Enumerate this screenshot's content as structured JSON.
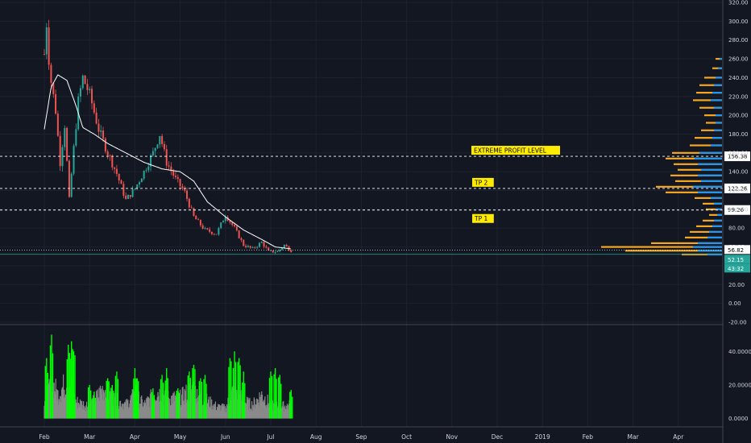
{
  "chart_data": [
    {
      "type": "candlestick",
      "ylim": [
        -20,
        320
      ],
      "y_ticks": [
        "320.00",
        "300.00",
        "280.00",
        "260.00",
        "240.00",
        "220.00",
        "200.00",
        "180.00",
        "160.00",
        "140.00",
        "120.00",
        "100.00",
        "80.00",
        "60.00",
        "40.00",
        "20.00",
        "0.00",
        "-20.00"
      ],
      "x_ticks": [
        "Feb",
        "Mar",
        "Apr",
        "May",
        "Jun",
        "Jul",
        "Aug",
        "Sep",
        "Oct",
        "Nov",
        "Dec",
        "2019",
        "Feb",
        "Mar",
        "Apr"
      ],
      "price_keypoints": [
        {
          "m": 0.0,
          "v": 265
        },
        {
          "m": 0.05,
          "v": 298
        },
        {
          "m": 0.12,
          "v": 245
        },
        {
          "m": 0.25,
          "v": 205
        },
        {
          "m": 0.35,
          "v": 150
        },
        {
          "m": 0.45,
          "v": 190
        },
        {
          "m": 0.55,
          "v": 110
        },
        {
          "m": 0.65,
          "v": 165
        },
        {
          "m": 0.75,
          "v": 215
        },
        {
          "m": 0.85,
          "v": 240
        },
        {
          "m": 1.0,
          "v": 222
        },
        {
          "m": 1.2,
          "v": 185
        },
        {
          "m": 1.4,
          "v": 160
        },
        {
          "m": 1.6,
          "v": 138
        },
        {
          "m": 1.8,
          "v": 110
        },
        {
          "m": 2.0,
          "v": 122
        },
        {
          "m": 2.2,
          "v": 140
        },
        {
          "m": 2.4,
          "v": 160
        },
        {
          "m": 2.55,
          "v": 180
        },
        {
          "m": 2.7,
          "v": 150
        },
        {
          "m": 2.9,
          "v": 132
        },
        {
          "m": 3.1,
          "v": 118
        },
        {
          "m": 3.3,
          "v": 92
        },
        {
          "m": 3.55,
          "v": 78
        },
        {
          "m": 3.8,
          "v": 74
        },
        {
          "m": 4.0,
          "v": 94
        },
        {
          "m": 4.2,
          "v": 80
        },
        {
          "m": 4.4,
          "v": 62
        },
        {
          "m": 4.6,
          "v": 58
        },
        {
          "m": 4.8,
          "v": 65
        },
        {
          "m": 4.95,
          "v": 55
        },
        {
          "m": 5.15,
          "v": 55
        },
        {
          "m": 5.3,
          "v": 62
        },
        {
          "m": 5.45,
          "v": 56
        }
      ],
      "moving_average_keypoints": [
        {
          "m": 0.0,
          "v": 185
        },
        {
          "m": 0.15,
          "v": 230
        },
        {
          "m": 0.3,
          "v": 243
        },
        {
          "m": 0.5,
          "v": 237
        },
        {
          "m": 0.7,
          "v": 210
        },
        {
          "m": 0.85,
          "v": 187
        },
        {
          "m": 1.1,
          "v": 180
        },
        {
          "m": 1.4,
          "v": 170
        },
        {
          "m": 1.8,
          "v": 160
        },
        {
          "m": 2.2,
          "v": 150
        },
        {
          "m": 2.6,
          "v": 143
        },
        {
          "m": 3.0,
          "v": 140
        },
        {
          "m": 3.3,
          "v": 130
        },
        {
          "m": 3.6,
          "v": 108
        },
        {
          "m": 4.0,
          "v": 92
        },
        {
          "m": 4.4,
          "v": 78
        },
        {
          "m": 4.8,
          "v": 68
        },
        {
          "m": 5.1,
          "v": 60
        },
        {
          "m": 5.45,
          "v": 58
        }
      ],
      "horizontal_levels": [
        {
          "label": "EXTREME PROFIT LEVEL",
          "value": 156.38,
          "value_text": "156.38"
        },
        {
          "label": "TP 2",
          "value": 122.26,
          "value_text": "122.26"
        },
        {
          "label": "TP 1",
          "value": 99.26,
          "value_text": "99.26"
        }
      ],
      "price_badges": [
        {
          "value": 56.82,
          "text": "56.82",
          "color": "#ffffff"
        },
        {
          "value": 52.15,
          "text": "52.15",
          "color": "#26a69a"
        },
        {
          "value": 43.32,
          "text": "43:32",
          "color": "#26a69a"
        }
      ],
      "volume_profile": {
        "orange": [
          {
            "v": 260,
            "len": 8
          },
          {
            "v": 250,
            "len": 12
          },
          {
            "v": 240,
            "len": 22
          },
          {
            "v": 232,
            "len": 28
          },
          {
            "v": 224,
            "len": 32
          },
          {
            "v": 216,
            "len": 36
          },
          {
            "v": 208,
            "len": 28
          },
          {
            "v": 200,
            "len": 22
          },
          {
            "v": 192,
            "len": 20
          },
          {
            "v": 184,
            "len": 26
          },
          {
            "v": 176,
            "len": 34
          },
          {
            "v": 168,
            "len": 40
          },
          {
            "v": 160,
            "len": 62
          },
          {
            "v": 154,
            "len": 70
          },
          {
            "v": 148,
            "len": 60
          },
          {
            "v": 142,
            "len": 55
          },
          {
            "v": 136,
            "len": 64
          },
          {
            "v": 130,
            "len": 58
          },
          {
            "v": 124,
            "len": 82
          },
          {
            "v": 118,
            "len": 70
          },
          {
            "v": 112,
            "len": 34
          },
          {
            "v": 106,
            "len": 24
          },
          {
            "v": 100,
            "len": 20
          },
          {
            "v": 94,
            "len": 16
          },
          {
            "v": 88,
            "len": 24
          },
          {
            "v": 82,
            "len": 32
          },
          {
            "v": 76,
            "len": 40
          },
          {
            "v": 70,
            "len": 46
          },
          {
            "v": 64,
            "len": 88
          },
          {
            "v": 60,
            "len": 150
          },
          {
            "v": 56,
            "len": 120
          },
          {
            "v": 52,
            "len": 50
          }
        ],
        "blue": [
          {
            "v": 260,
            "len": 3
          },
          {
            "v": 250,
            "len": 5
          },
          {
            "v": 240,
            "len": 8
          },
          {
            "v": 232,
            "len": 10
          },
          {
            "v": 224,
            "len": 12
          },
          {
            "v": 216,
            "len": 14
          },
          {
            "v": 208,
            "len": 10
          },
          {
            "v": 200,
            "len": 8
          },
          {
            "v": 192,
            "len": 8
          },
          {
            "v": 184,
            "len": 10
          },
          {
            "v": 176,
            "len": 12
          },
          {
            "v": 168,
            "len": 14
          },
          {
            "v": 160,
            "len": 28
          },
          {
            "v": 154,
            "len": 34
          },
          {
            "v": 148,
            "len": 30
          },
          {
            "v": 142,
            "len": 26
          },
          {
            "v": 136,
            "len": 30
          },
          {
            "v": 130,
            "len": 26
          },
          {
            "v": 124,
            "len": 36
          },
          {
            "v": 118,
            "len": 30
          },
          {
            "v": 112,
            "len": 14
          },
          {
            "v": 106,
            "len": 10
          },
          {
            "v": 100,
            "len": 8
          },
          {
            "v": 94,
            "len": 6
          },
          {
            "v": 88,
            "len": 10
          },
          {
            "v": 82,
            "len": 12
          },
          {
            "v": 76,
            "len": 16
          },
          {
            "v": 70,
            "len": 18
          },
          {
            "v": 64,
            "len": 30
          },
          {
            "v": 60,
            "len": 36
          },
          {
            "v": 56,
            "len": 30
          },
          {
            "v": 52,
            "len": 18
          }
        ]
      }
    },
    {
      "type": "histogram",
      "ylim": [
        -5,
        55
      ],
      "y_ticks": [
        "40.0000",
        "20.0000",
        "0.0000"
      ],
      "envelope_keypoints": [
        {
          "m": 0.0,
          "v": 12
        },
        {
          "m": 0.1,
          "v": 16
        },
        {
          "m": 0.2,
          "v": 20
        },
        {
          "m": 0.3,
          "v": 14
        },
        {
          "m": 0.4,
          "v": 18
        },
        {
          "m": 0.5,
          "v": 22
        },
        {
          "m": 0.6,
          "v": 18
        },
        {
          "m": 0.7,
          "v": 10
        },
        {
          "m": 0.9,
          "v": 8
        },
        {
          "m": 1.1,
          "v": 10
        },
        {
          "m": 1.3,
          "v": 18
        },
        {
          "m": 1.5,
          "v": 12
        },
        {
          "m": 1.8,
          "v": 8
        },
        {
          "m": 2.0,
          "v": 14
        },
        {
          "m": 2.2,
          "v": 8
        },
        {
          "m": 2.5,
          "v": 16
        },
        {
          "m": 2.7,
          "v": 12
        },
        {
          "m": 3.0,
          "v": 12
        },
        {
          "m": 3.3,
          "v": 18
        },
        {
          "m": 3.5,
          "v": 12
        },
        {
          "m": 3.8,
          "v": 7
        },
        {
          "m": 4.0,
          "v": 6
        },
        {
          "m": 4.2,
          "v": 18
        },
        {
          "m": 4.4,
          "v": 10
        },
        {
          "m": 4.6,
          "v": 8
        },
        {
          "m": 4.8,
          "v": 14
        },
        {
          "m": 5.0,
          "v": 8
        },
        {
          "m": 5.2,
          "v": 7
        },
        {
          "m": 5.45,
          "v": 8
        }
      ],
      "highlight_spikes": [
        {
          "m": 0.05,
          "v": 36
        },
        {
          "m": 0.16,
          "v": 50
        },
        {
          "m": 0.53,
          "v": 44
        },
        {
          "m": 0.6,
          "v": 46
        },
        {
          "m": 0.65,
          "v": 40
        },
        {
          "m": 1.0,
          "v": 20
        },
        {
          "m": 1.1,
          "v": 16
        },
        {
          "m": 1.4,
          "v": 24
        },
        {
          "m": 1.5,
          "v": 20
        },
        {
          "m": 1.6,
          "v": 28
        },
        {
          "m": 2.0,
          "v": 30
        },
        {
          "m": 2.05,
          "v": 24
        },
        {
          "m": 2.4,
          "v": 18
        },
        {
          "m": 2.6,
          "v": 26
        },
        {
          "m": 2.7,
          "v": 30
        },
        {
          "m": 2.95,
          "v": 18
        },
        {
          "m": 3.2,
          "v": 28
        },
        {
          "m": 3.3,
          "v": 32
        },
        {
          "m": 3.45,
          "v": 24
        },
        {
          "m": 3.55,
          "v": 26
        },
        {
          "m": 4.1,
          "v": 36
        },
        {
          "m": 4.2,
          "v": 40
        },
        {
          "m": 4.3,
          "v": 36
        },
        {
          "m": 4.4,
          "v": 28
        },
        {
          "m": 5.0,
          "v": 28
        },
        {
          "m": 5.1,
          "v": 30
        },
        {
          "m": 5.2,
          "v": 26
        },
        {
          "m": 5.45,
          "v": 17
        }
      ]
    }
  ],
  "colors": {
    "background": "#131722",
    "grid": "#1e2230",
    "candle_up": "#26a69a",
    "candle_down": "#ef5350",
    "moving_average": "#ffffff",
    "level_line": "#ffffff",
    "annotation_bg": "#ffeb00",
    "volume_bar": "#8a8a8a",
    "volume_highlight": "#00ff00",
    "profile_orange": "#f5a623",
    "profile_blue": "#2196f3"
  }
}
